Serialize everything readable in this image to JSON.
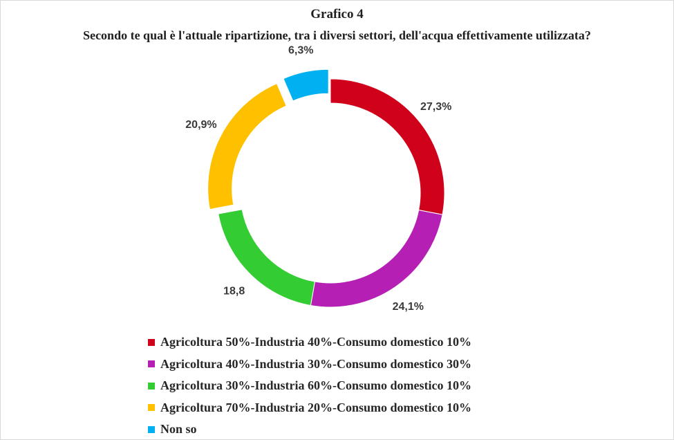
{
  "chart_data": {
    "type": "pie",
    "title": "Grafico 4",
    "subtitle": "Secondo te qual è l'attuale ripartizione, tra i diversi settori, dell'acqua effettivamente utilizzata?",
    "categories": [
      "Agricoltura 50%-Industria 40%-Consumo domestico 10%",
      "Agricoltura 40%-Industria 30%-Consumo domestico 30%",
      "Agricoltura 30%-Industria 60%-Consumo domestico 10%",
      "Agricoltura 70%-Industria 20%-Consumo domestico 10%",
      "Non so"
    ],
    "values": [
      27.3,
      24.1,
      18.8,
      20.9,
      6.3
    ],
    "data_labels": [
      "27,3%",
      "24,1%",
      "18,8",
      "20,9%",
      "6,3%"
    ],
    "colors": [
      "#d0021b",
      "#b51fb4",
      "#33cc33",
      "#ffc000",
      "#00b0f0"
    ],
    "exploded": [
      false,
      false,
      false,
      true,
      true
    ],
    "legend_position": "bottom"
  }
}
